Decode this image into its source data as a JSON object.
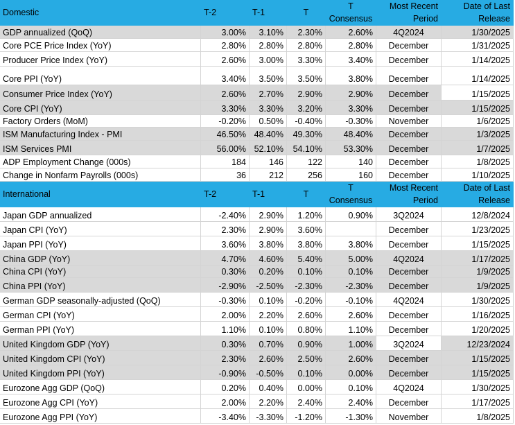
{
  "sections": [
    {
      "header": [
        "Domestic",
        "T-2",
        "T-1",
        "T",
        "T Consensus",
        "Most Recent Period",
        "Date of Last Release"
      ],
      "rows": [
        [
          "GDP annualized (QoQ)",
          "3.00%",
          "3.10%",
          "2.30%",
          "2.60%",
          "4Q2024",
          "1/30/2025"
        ],
        [
          "Core PCE Price Index (YoY)",
          "2.80%",
          "2.80%",
          "2.80%",
          "2.80%",
          "December",
          "1/31/2025"
        ],
        [
          "Producer Price Index (YoY)",
          "2.60%",
          "3.00%",
          "3.30%",
          "3.40%",
          "December",
          "1/14/2025"
        ],
        [
          "Core PPI (YoY)",
          "3.40%",
          "3.50%",
          "3.50%",
          "3.80%",
          "December",
          "1/14/2025"
        ],
        [
          "Consumer Price Index (YoY)",
          "2.60%",
          "2.70%",
          "2.90%",
          "2.90%",
          "December",
          "1/15/2025"
        ],
        [
          "Core CPI  (YoY)",
          "3.30%",
          "3.30%",
          "3.20%",
          "3.30%",
          "December",
          "1/15/2025"
        ],
        [
          "Factory Orders (MoM)",
          "-0.20%",
          "0.50%",
          "-0.40%",
          "-0.30%",
          "November",
          "1/6/2025"
        ],
        [
          "ISM Manufacturing Index - PMI",
          "46.50%",
          "48.40%",
          "49.30%",
          "48.40%",
          "December",
          "1/3/2025"
        ],
        [
          "ISM Services PMI",
          "56.00%",
          "52.10%",
          "54.10%",
          "53.30%",
          "December",
          "1/7/2025"
        ],
        [
          "ADP Employment Change (000s)",
          "184",
          "146",
          "122",
          "140",
          "December",
          "1/8/2025"
        ],
        [
          "Change in Nonfarm Payrolls (000s)",
          "36",
          "212",
          "256",
          "160",
          "December",
          "1/10/2025"
        ]
      ]
    },
    {
      "header": [
        "International",
        "T-2",
        "T-1",
        "T",
        "T Consensus",
        "Most Recent Period",
        "Date of Last Release"
      ],
      "rows": [
        [
          "Japan GDP annualized",
          "-2.40%",
          "2.90%",
          "1.20%",
          "0.90%",
          "3Q2024",
          "12/8/2024"
        ],
        [
          "Japan CPI (YoY)",
          "2.30%",
          "2.90%",
          "3.60%",
          null,
          "December",
          "1/23/2025"
        ],
        [
          "Japan PPI (YoY)",
          "3.60%",
          "3.80%",
          "3.80%",
          "3.80%",
          "December",
          "1/15/2025"
        ],
        [
          "China GDP (YoY)",
          "4.70%",
          "4.60%",
          "5.40%",
          "5.00%",
          "4Q2024",
          "1/17/2025"
        ],
        [
          "China CPI (YoY)",
          "0.30%",
          "0.20%",
          "0.10%",
          "0.10%",
          "December",
          "1/9/2025"
        ],
        [
          "China PPI (YoY)",
          "-2.90%",
          "-2.50%",
          "-2.30%",
          "-2.30%",
          "December",
          "1/9/2025"
        ],
        [
          "German GDP seasonally-adjusted (QoQ)",
          "-0.30%",
          "0.10%",
          "-0.20%",
          "-0.10%",
          "4Q2024",
          "1/30/2025"
        ],
        [
          "German CPI (YoY)",
          "2.00%",
          "2.20%",
          "2.60%",
          "2.60%",
          "December",
          "1/16/2025"
        ],
        [
          "German PPI (YoY)",
          "1.10%",
          "0.10%",
          "0.80%",
          "1.10%",
          "December",
          "1/20/2025"
        ],
        [
          "United Kingdom GDP (YoY)",
          "0.30%",
          "0.70%",
          "0.90%",
          "1.00%",
          "3Q2024",
          "12/23/2024"
        ],
        [
          "United Kingdom CPI (YoY)",
          "2.30%",
          "2.60%",
          "2.50%",
          "2.60%",
          "December",
          "1/15/2025"
        ],
        [
          "United Kingdom  PPI (YoY)",
          "-0.90%",
          "-0.50%",
          "0.10%",
          "0.00%",
          "December",
          "1/15/2025"
        ],
        [
          "Eurozone Agg GDP (QoQ)",
          "0.20%",
          "0.40%",
          "0.00%",
          "0.10%",
          "4Q2024",
          "1/30/2025"
        ],
        [
          "Eurozone Agg CPI (YoY)",
          "2.00%",
          "2.20%",
          "2.40%",
          "2.40%",
          "December",
          "1/17/2025"
        ],
        [
          "Eurozone Agg PPI (YoY)",
          "-3.40%",
          "-3.30%",
          "-1.20%",
          "-1.30%",
          "November",
          "1/8/2025"
        ]
      ]
    }
  ]
}
